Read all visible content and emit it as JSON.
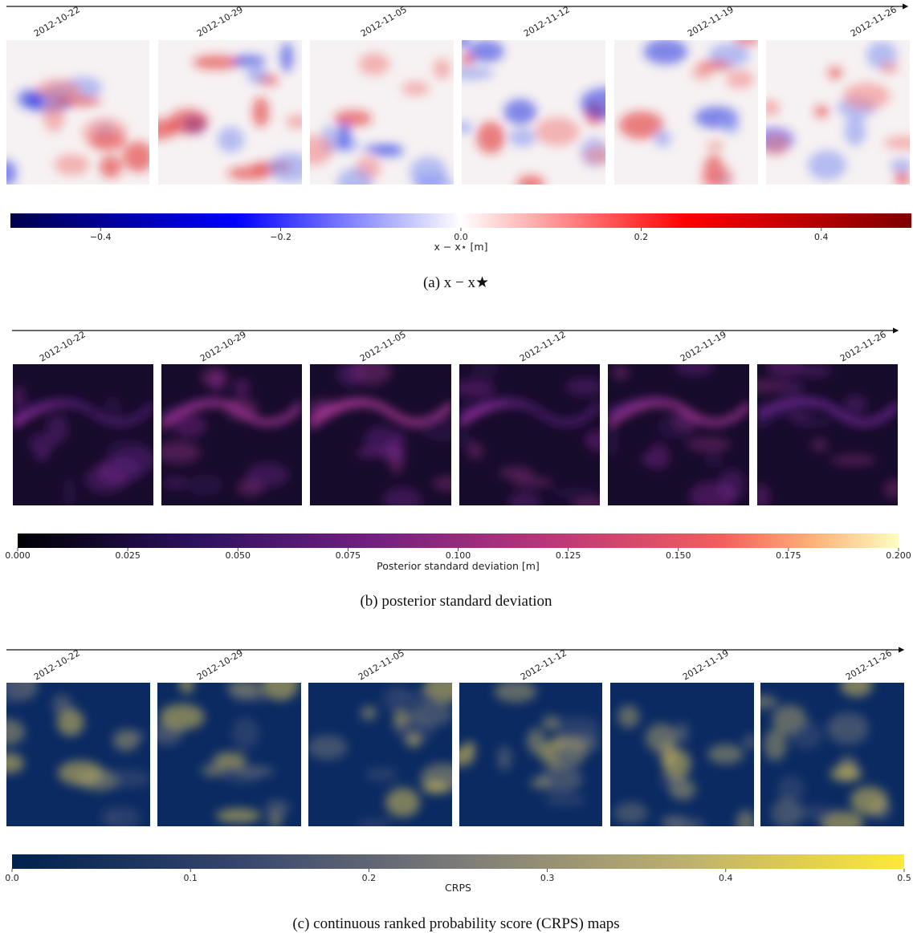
{
  "panels": [
    {
      "dates": [
        "2012-10-22",
        "2012-10-29",
        "2012-11-05",
        "2012-11-12",
        "2012-11-19",
        "2012-11-26"
      ],
      "colorbar": {
        "label": "x − x⋆ [m]",
        "lim": [
          -0.5,
          0.5
        ],
        "ticks": [
          {
            "value": -0.4,
            "label": "−0.4"
          },
          {
            "value": -0.2,
            "label": "−0.2"
          },
          {
            "value": 0,
            "label": "0.0"
          },
          0.2,
          0.4
        ]
      },
      "caption": "(a) x − x★"
    },
    {
      "dates": [
        "2012-10-22",
        "2012-10-29",
        "2012-11-05",
        "2012-11-12",
        "2012-11-19",
        "2012-11-26"
      ],
      "colorbar": {
        "label": "Posterior standard deviation [m]",
        "lim": [
          0,
          0.2
        ],
        "ticks": [
          {
            "value": 0,
            "label": "0.000"
          },
          0.025,
          {
            "value": 0.05,
            "label": "0.050"
          },
          0.075,
          {
            "value": 0.1,
            "label": "0.100"
          },
          0.125,
          {
            "value": 0.15,
            "label": "0.150"
          },
          0.175,
          {
            "value": 0.2,
            "label": "0.200"
          }
        ]
      },
      "caption": "(b) posterior standard deviation"
    },
    {
      "dates": [
        "2012-10-22",
        "2012-10-29",
        "2012-11-05",
        "2012-11-12",
        "2012-11-19",
        "2012-11-26"
      ],
      "colorbar": {
        "label": "CRPS",
        "lim": [
          0,
          0.5
        ],
        "ticks": [
          {
            "value": 0,
            "label": "0.0"
          },
          0.1,
          0.2,
          0.3,
          0.4,
          0.5
        ]
      },
      "caption": "(c) continuous ranked probability score (CRPS) maps"
    }
  ]
}
